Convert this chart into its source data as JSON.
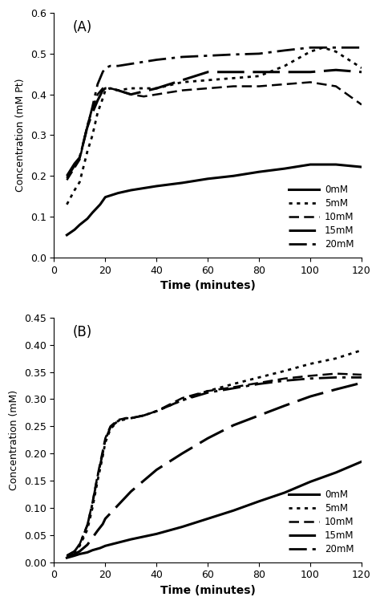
{
  "panel_A": {
    "label": "(A)",
    "ylabel": "Concentration (mM Pt)",
    "xlabel": "Time (minutes)",
    "xlim": [
      0,
      120
    ],
    "ylim": [
      0,
      0.6
    ],
    "yticks": [
      0,
      0.1,
      0.2,
      0.3,
      0.4,
      0.5,
      0.6
    ],
    "xticks": [
      0,
      20,
      40,
      60,
      80,
      100,
      120
    ],
    "series": {
      "0mM": {
        "x": [
          5,
          8,
          10,
          13,
          15,
          18,
          20,
          25,
          30,
          40,
          50,
          60,
          70,
          80,
          90,
          100,
          110,
          120
        ],
        "y": [
          0.055,
          0.068,
          0.08,
          0.095,
          0.11,
          0.13,
          0.148,
          0.158,
          0.165,
          0.175,
          0.183,
          0.193,
          0.2,
          0.21,
          0.218,
          0.228,
          0.228,
          0.222
        ]
      },
      "5mM": {
        "x": [
          5,
          8,
          10,
          13,
          15,
          17,
          19,
          20,
          22,
          25,
          30,
          40,
          50,
          60,
          70,
          80,
          90,
          100,
          105,
          110,
          120
        ],
        "y": [
          0.13,
          0.165,
          0.185,
          0.26,
          0.3,
          0.355,
          0.39,
          0.41,
          0.415,
          0.41,
          0.415,
          0.415,
          0.43,
          0.435,
          0.44,
          0.445,
          0.47,
          0.505,
          0.515,
          0.505,
          0.465
        ]
      },
      "10mM": {
        "x": [
          5,
          8,
          10,
          13,
          15,
          17,
          19,
          20,
          22,
          25,
          30,
          35,
          40,
          50,
          60,
          70,
          80,
          90,
          100,
          110,
          120
        ],
        "y": [
          0.19,
          0.22,
          0.24,
          0.325,
          0.365,
          0.4,
          0.415,
          0.415,
          0.415,
          0.41,
          0.4,
          0.395,
          0.4,
          0.41,
          0.415,
          0.42,
          0.42,
          0.425,
          0.43,
          0.42,
          0.375
        ]
      },
      "15mM": {
        "x": [
          5,
          8,
          10,
          13,
          15,
          17,
          19,
          20,
          22,
          25,
          30,
          40,
          50,
          60,
          70,
          80,
          90,
          100,
          110,
          120
        ],
        "y": [
          0.2,
          0.23,
          0.245,
          0.32,
          0.355,
          0.385,
          0.41,
          0.415,
          0.415,
          0.41,
          0.4,
          0.415,
          0.435,
          0.455,
          0.455,
          0.455,
          0.455,
          0.455,
          0.46,
          0.455
        ]
      },
      "20mM": {
        "x": [
          5,
          8,
          10,
          13,
          15,
          17,
          19,
          20,
          22,
          25,
          30,
          40,
          50,
          60,
          70,
          80,
          90,
          100,
          110,
          120
        ],
        "y": [
          0.195,
          0.225,
          0.245,
          0.32,
          0.37,
          0.425,
          0.455,
          0.465,
          0.47,
          0.47,
          0.475,
          0.485,
          0.492,
          0.495,
          0.498,
          0.5,
          0.508,
          0.515,
          0.515,
          0.515
        ]
      }
    },
    "legend_order": [
      "0mM",
      "5mM",
      "10mM",
      "15mM",
      "20mM"
    ]
  },
  "panel_B": {
    "label": "(B)",
    "ylabel": "Concentration (mM)",
    "xlabel": "Time (minutes)",
    "xlim": [
      0,
      120
    ],
    "ylim": [
      0,
      0.45
    ],
    "yticks": [
      0,
      0.05,
      0.1,
      0.15,
      0.2,
      0.25,
      0.3,
      0.35,
      0.4,
      0.45
    ],
    "xticks": [
      0,
      20,
      40,
      60,
      80,
      100,
      120
    ],
    "series": {
      "0mM": {
        "x": [
          5,
          8,
          10,
          13,
          15,
          18,
          20,
          25,
          30,
          40,
          50,
          60,
          70,
          80,
          90,
          100,
          110,
          120
        ],
        "y": [
          0.008,
          0.012,
          0.015,
          0.018,
          0.022,
          0.026,
          0.03,
          0.036,
          0.042,
          0.052,
          0.065,
          0.08,
          0.095,
          0.112,
          0.128,
          0.148,
          0.165,
          0.185
        ]
      },
      "5mM": {
        "x": [
          5,
          8,
          10,
          13,
          15,
          17,
          19,
          20,
          22,
          25,
          28,
          30,
          35,
          40,
          45,
          50,
          60,
          70,
          80,
          90,
          100,
          110,
          120
        ],
        "y": [
          0.01,
          0.018,
          0.03,
          0.06,
          0.1,
          0.15,
          0.195,
          0.22,
          0.245,
          0.26,
          0.265,
          0.265,
          0.27,
          0.278,
          0.288,
          0.298,
          0.315,
          0.328,
          0.34,
          0.352,
          0.365,
          0.375,
          0.39
        ]
      },
      "10mM": {
        "x": [
          5,
          8,
          10,
          13,
          15,
          17,
          19,
          20,
          22,
          25,
          28,
          30,
          35,
          40,
          45,
          50,
          60,
          70,
          80,
          90,
          100,
          110,
          120
        ],
        "y": [
          0.012,
          0.02,
          0.033,
          0.068,
          0.11,
          0.16,
          0.205,
          0.228,
          0.25,
          0.262,
          0.265,
          0.265,
          0.27,
          0.278,
          0.29,
          0.302,
          0.315,
          0.322,
          0.33,
          0.338,
          0.343,
          0.347,
          0.345
        ]
      },
      "15mM": {
        "x": [
          5,
          8,
          10,
          13,
          15,
          17,
          19,
          20,
          25,
          30,
          35,
          40,
          50,
          60,
          70,
          80,
          90,
          100,
          110,
          120
        ],
        "y": [
          0.01,
          0.015,
          0.02,
          0.032,
          0.045,
          0.058,
          0.07,
          0.08,
          0.105,
          0.13,
          0.15,
          0.17,
          0.2,
          0.228,
          0.252,
          0.27,
          0.288,
          0.305,
          0.318,
          0.33
        ]
      },
      "20mM": {
        "x": [
          5,
          8,
          10,
          13,
          15,
          17,
          19,
          20,
          22,
          25,
          28,
          30,
          35,
          40,
          45,
          50,
          60,
          70,
          80,
          90,
          100,
          110,
          120
        ],
        "y": [
          0.012,
          0.02,
          0.033,
          0.068,
          0.108,
          0.158,
          0.2,
          0.225,
          0.248,
          0.26,
          0.263,
          0.265,
          0.27,
          0.278,
          0.288,
          0.298,
          0.312,
          0.32,
          0.328,
          0.334,
          0.338,
          0.34,
          0.34
        ]
      }
    },
    "legend_order": [
      "0mM",
      "5mM",
      "10mM",
      "15mM",
      "20mM"
    ]
  },
  "figure": {
    "figsize": [
      4.74,
      7.54
    ],
    "dpi": 100,
    "facecolor": "#ffffff"
  }
}
